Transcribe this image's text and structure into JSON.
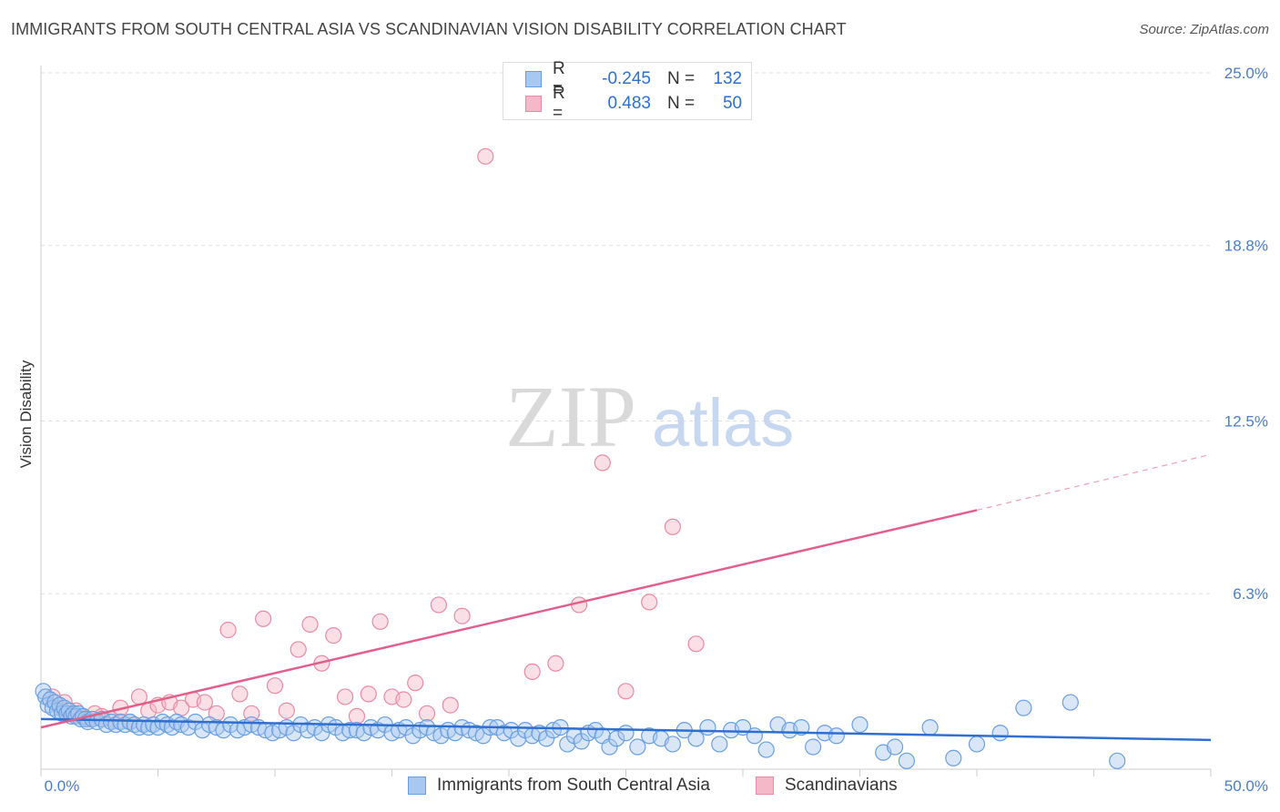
{
  "title": "IMMIGRANTS FROM SOUTH CENTRAL ASIA VS SCANDINAVIAN VISION DISABILITY CORRELATION CHART",
  "source": "Source: ZipAtlas.com",
  "watermark": {
    "zip": "ZIP",
    "atlas": "atlas"
  },
  "colors": {
    "blue_fill": "#a8c8f0",
    "blue_stroke": "#6a9fdf",
    "blue_line": "#2f6fd0",
    "pink_fill": "#f5b8c8",
    "pink_stroke": "#e98aa5",
    "pink_line": "#e0608a",
    "tick_text": "#4a7cc9",
    "grid": "#dddddd"
  },
  "legend": {
    "rows": [
      {
        "r_label": "R =",
        "r_value": "-0.245",
        "n_label": "N =",
        "n_value": "132"
      },
      {
        "r_label": "R =",
        "r_value": "0.483",
        "n_label": "N =",
        "n_value": "50"
      }
    ]
  },
  "bottom_legend": [
    "Immigrants from South Central Asia",
    "Scandinavians"
  ],
  "chart_data": {
    "type": "scatter",
    "xlabel": "",
    "ylabel": "Vision Disability",
    "xlim": [
      0,
      50
    ],
    "ylim": [
      0,
      25
    ],
    "x_tick_labels": [
      "0.0%",
      "50.0%"
    ],
    "y_ticks": [
      6.3,
      12.5,
      18.8,
      25.0
    ],
    "y_tick_labels": [
      "6.3%",
      "12.5%",
      "18.8%",
      "25.0%"
    ],
    "grid": true,
    "legend_placement": "top-center",
    "series": [
      {
        "name": "Immigrants from South Central Asia",
        "trend": {
          "x": [
            0,
            50
          ],
          "y": [
            1.8,
            1.05
          ]
        },
        "points": [
          [
            0.1,
            2.8
          ],
          [
            0.2,
            2.6
          ],
          [
            0.3,
            2.3
          ],
          [
            0.4,
            2.5
          ],
          [
            0.5,
            2.2
          ],
          [
            0.6,
            2.4
          ],
          [
            0.7,
            2.1
          ],
          [
            0.8,
            2.3
          ],
          [
            0.9,
            2.0
          ],
          [
            1.0,
            2.2
          ],
          [
            1.1,
            2.0
          ],
          [
            1.2,
            2.1
          ],
          [
            1.3,
            1.9
          ],
          [
            1.4,
            2.0
          ],
          [
            1.5,
            1.9
          ],
          [
            1.6,
            2.0
          ],
          [
            1.7,
            1.8
          ],
          [
            1.8,
            1.9
          ],
          [
            1.9,
            1.8
          ],
          [
            2.0,
            1.7
          ],
          [
            2.2,
            1.8
          ],
          [
            2.4,
            1.7
          ],
          [
            2.6,
            1.8
          ],
          [
            2.8,
            1.6
          ],
          [
            3.0,
            1.7
          ],
          [
            3.2,
            1.6
          ],
          [
            3.4,
            1.7
          ],
          [
            3.6,
            1.6
          ],
          [
            3.8,
            1.7
          ],
          [
            4.0,
            1.6
          ],
          [
            4.2,
            1.5
          ],
          [
            4.4,
            1.6
          ],
          [
            4.6,
            1.5
          ],
          [
            4.8,
            1.6
          ],
          [
            5.0,
            1.5
          ],
          [
            5.2,
            1.7
          ],
          [
            5.4,
            1.6
          ],
          [
            5.6,
            1.5
          ],
          [
            5.8,
            1.7
          ],
          [
            6.0,
            1.6
          ],
          [
            6.3,
            1.5
          ],
          [
            6.6,
            1.7
          ],
          [
            6.9,
            1.4
          ],
          [
            7.2,
            1.6
          ],
          [
            7.5,
            1.5
          ],
          [
            7.8,
            1.4
          ],
          [
            8.1,
            1.6
          ],
          [
            8.4,
            1.4
          ],
          [
            8.7,
            1.5
          ],
          [
            9.0,
            1.6
          ],
          [
            9.3,
            1.5
          ],
          [
            9.6,
            1.4
          ],
          [
            9.9,
            1.3
          ],
          [
            10.2,
            1.4
          ],
          [
            10.5,
            1.5
          ],
          [
            10.8,
            1.3
          ],
          [
            11.1,
            1.6
          ],
          [
            11.4,
            1.4
          ],
          [
            11.7,
            1.5
          ],
          [
            12.0,
            1.3
          ],
          [
            12.3,
            1.6
          ],
          [
            12.6,
            1.5
          ],
          [
            12.9,
            1.3
          ],
          [
            13.2,
            1.4
          ],
          [
            13.5,
            1.4
          ],
          [
            13.8,
            1.3
          ],
          [
            14.1,
            1.5
          ],
          [
            14.4,
            1.4
          ],
          [
            14.7,
            1.6
          ],
          [
            15.0,
            1.3
          ],
          [
            15.3,
            1.4
          ],
          [
            15.6,
            1.5
          ],
          [
            15.9,
            1.2
          ],
          [
            16.2,
            1.4
          ],
          [
            16.5,
            1.5
          ],
          [
            16.8,
            1.3
          ],
          [
            17.1,
            1.2
          ],
          [
            17.4,
            1.4
          ],
          [
            17.7,
            1.3
          ],
          [
            18.0,
            1.5
          ],
          [
            18.3,
            1.4
          ],
          [
            18.6,
            1.3
          ],
          [
            18.9,
            1.2
          ],
          [
            19.2,
            1.5
          ],
          [
            19.5,
            1.5
          ],
          [
            19.8,
            1.3
          ],
          [
            20.1,
            1.4
          ],
          [
            20.4,
            1.1
          ],
          [
            20.7,
            1.4
          ],
          [
            21.0,
            1.2
          ],
          [
            21.3,
            1.3
          ],
          [
            21.6,
            1.1
          ],
          [
            21.9,
            1.4
          ],
          [
            22.2,
            1.5
          ],
          [
            22.5,
            0.9
          ],
          [
            22.8,
            1.2
          ],
          [
            23.1,
            1.0
          ],
          [
            23.4,
            1.3
          ],
          [
            23.7,
            1.4
          ],
          [
            24.0,
            1.2
          ],
          [
            24.3,
            0.8
          ],
          [
            24.6,
            1.1
          ],
          [
            25.0,
            1.3
          ],
          [
            25.5,
            0.8
          ],
          [
            26.0,
            1.2
          ],
          [
            26.5,
            1.1
          ],
          [
            27.0,
            0.9
          ],
          [
            27.5,
            1.4
          ],
          [
            28.0,
            1.1
          ],
          [
            28.5,
            1.5
          ],
          [
            29.0,
            0.9
          ],
          [
            29.5,
            1.4
          ],
          [
            30.0,
            1.5
          ],
          [
            30.5,
            1.2
          ],
          [
            31.0,
            0.7
          ],
          [
            31.5,
            1.6
          ],
          [
            32.0,
            1.4
          ],
          [
            32.5,
            1.5
          ],
          [
            33.0,
            0.8
          ],
          [
            33.5,
            1.3
          ],
          [
            34.0,
            1.2
          ],
          [
            35.0,
            1.6
          ],
          [
            36.0,
            0.6
          ],
          [
            36.5,
            0.8
          ],
          [
            37.0,
            0.3
          ],
          [
            38.0,
            1.5
          ],
          [
            39.0,
            0.4
          ],
          [
            40.0,
            0.9
          ],
          [
            41.0,
            1.3
          ],
          [
            42.0,
            2.2
          ],
          [
            44.0,
            2.4
          ],
          [
            46.0,
            0.3
          ]
        ]
      },
      {
        "name": "Scandinavians",
        "trend": {
          "x": [
            0,
            40
          ],
          "y": [
            1.5,
            9.3
          ],
          "dashed_to": {
            "x": 50,
            "y": 11.3
          }
        },
        "points": [
          [
            0.5,
            2.6
          ],
          [
            0.8,
            2.2
          ],
          [
            1.0,
            2.4
          ],
          [
            1.2,
            2.0
          ],
          [
            1.5,
            2.1
          ],
          [
            1.8,
            1.9
          ],
          [
            2.0,
            1.8
          ],
          [
            2.3,
            2.0
          ],
          [
            2.6,
            1.9
          ],
          [
            3.0,
            1.8
          ],
          [
            3.4,
            2.2
          ],
          [
            3.8,
            1.7
          ],
          [
            4.2,
            2.6
          ],
          [
            4.6,
            2.1
          ],
          [
            5.0,
            2.3
          ],
          [
            5.5,
            2.4
          ],
          [
            6.0,
            2.2
          ],
          [
            6.5,
            2.5
          ],
          [
            7.0,
            2.4
          ],
          [
            7.5,
            2.0
          ],
          [
            8.0,
            5.0
          ],
          [
            8.5,
            2.7
          ],
          [
            9.0,
            2.0
          ],
          [
            9.5,
            5.4
          ],
          [
            10.0,
            3.0
          ],
          [
            10.5,
            2.1
          ],
          [
            11.0,
            4.3
          ],
          [
            11.5,
            5.2
          ],
          [
            12.0,
            3.8
          ],
          [
            12.5,
            4.8
          ],
          [
            13.0,
            2.6
          ],
          [
            13.5,
            1.9
          ],
          [
            14.0,
            2.7
          ],
          [
            14.5,
            5.3
          ],
          [
            15.0,
            2.6
          ],
          [
            15.5,
            2.5
          ],
          [
            16.0,
            3.1
          ],
          [
            16.5,
            2.0
          ],
          [
            17.0,
            5.9
          ],
          [
            17.5,
            2.3
          ],
          [
            18.0,
            5.5
          ],
          [
            19.0,
            22.0
          ],
          [
            21.0,
            3.5
          ],
          [
            22.0,
            3.8
          ],
          [
            23.0,
            5.9
          ],
          [
            24.0,
            11.0
          ],
          [
            25.0,
            2.8
          ],
          [
            26.0,
            6.0
          ],
          [
            27.0,
            8.7
          ],
          [
            28.0,
            4.5
          ]
        ]
      }
    ]
  }
}
